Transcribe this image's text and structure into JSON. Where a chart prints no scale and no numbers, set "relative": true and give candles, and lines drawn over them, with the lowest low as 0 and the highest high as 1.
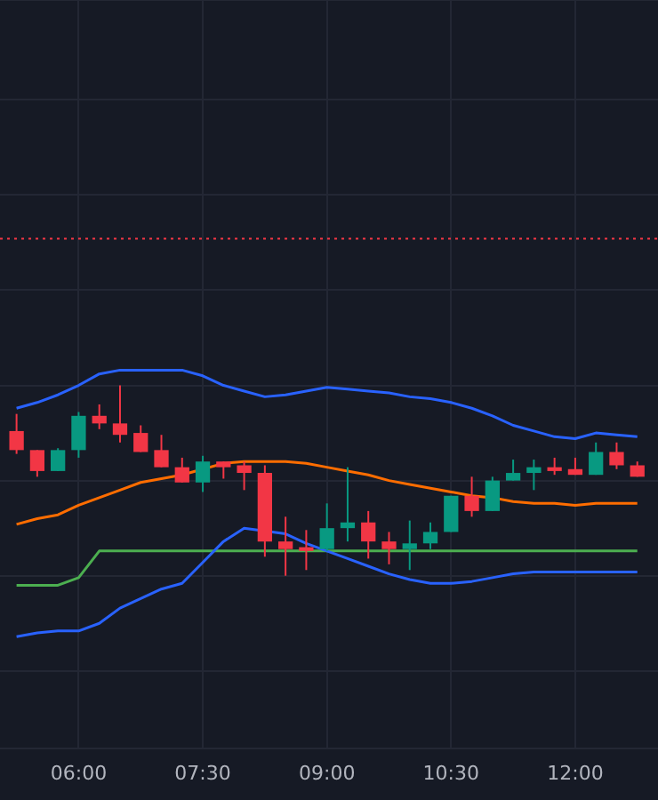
{
  "chart_data": {
    "type": "candlestick",
    "relative": true,
    "x": [
      5.25,
      5.5,
      5.75,
      6,
      6.25,
      6.5,
      6.75,
      7,
      7.25,
      7.5,
      7.75,
      8,
      8.25,
      8.5,
      8.75,
      9,
      9.25,
      9.5,
      9.75,
      10,
      10.25,
      10.5,
      10.75,
      11,
      11.25,
      11.5,
      11.75,
      12,
      12.25,
      12.5,
      12.75
    ],
    "ohlc": [
      [
        0.76,
        0.85,
        0.64,
        0.66
      ],
      [
        0.66,
        0.66,
        0.52,
        0.55
      ],
      [
        0.55,
        0.67,
        0.55,
        0.66
      ],
      [
        0.66,
        0.86,
        0.62,
        0.84
      ],
      [
        0.84,
        0.9,
        0.77,
        0.8
      ],
      [
        0.8,
        1,
        0.7,
        0.74
      ],
      [
        0.75,
        0.79,
        0.65,
        0.65
      ],
      [
        0.66,
        0.74,
        0.57,
        0.57
      ],
      [
        0.57,
        0.62,
        0.49,
        0.49
      ],
      [
        0.49,
        0.63,
        0.44,
        0.6
      ],
      [
        0.6,
        0.6,
        0.51,
        0.57
      ],
      [
        0.58,
        0.6,
        0.45,
        0.54
      ],
      [
        0.54,
        0.58,
        0.1,
        0.18
      ],
      [
        0.18,
        0.31,
        0,
        0.14
      ],
      [
        0.15,
        0.24,
        0.03,
        0.13
      ],
      [
        0.14,
        0.38,
        0.13,
        0.25
      ],
      [
        0.25,
        0.57,
        0.18,
        0.28
      ],
      [
        0.28,
        0.34,
        0.09,
        0.18
      ],
      [
        0.18,
        0.23,
        0.06,
        0.14
      ],
      [
        0.14,
        0.29,
        0.03,
        0.17
      ],
      [
        0.17,
        0.28,
        0.14,
        0.23
      ],
      [
        0.23,
        0.42,
        0.23,
        0.42
      ],
      [
        0.42,
        0.52,
        0.31,
        0.34
      ],
      [
        0.34,
        0.52,
        0.34,
        0.5
      ],
      [
        0.5,
        0.61,
        0.5,
        0.54
      ],
      [
        0.54,
        0.61,
        0.45,
        0.57
      ],
      [
        0.57,
        0.62,
        0.53,
        0.55
      ],
      [
        0.56,
        0.62,
        0.53,
        0.53
      ],
      [
        0.53,
        0.7,
        0.53,
        0.65
      ],
      [
        0.65,
        0.7,
        0.56,
        0.58
      ],
      [
        0.58,
        0.6,
        0.52,
        0.52
      ]
    ],
    "colors": [
      "#f23645",
      "#f23645",
      "#089981",
      "#089981",
      "#f23645",
      "#f23645",
      "#f23645",
      "#f23645",
      "#f23645",
      "#089981",
      "#f23645",
      "#f23645",
      "#f23645",
      "#f23645",
      "#f23645",
      "#089981",
      "#089981",
      "#f23645",
      "#f23645",
      "#089981",
      "#089981",
      "#089981",
      "#f23645",
      "#089981",
      "#089981",
      "#089981",
      "#f23645",
      "#f23645",
      "#089981",
      "#f23645",
      "#f23645"
    ],
    "series": [
      {
        "type": "line",
        "color": "#2962ff",
        "values": [
          0.88,
          0.91,
          0.95,
          1.0,
          1.06,
          1.08,
          1.08,
          1.08,
          1.08,
          1.05,
          1.0,
          0.97,
          0.94,
          0.95,
          0.97,
          0.99,
          0.98,
          0.97,
          0.96,
          0.94,
          0.93,
          0.91,
          0.88,
          0.84,
          0.79,
          0.76,
          0.73,
          0.72,
          0.75,
          0.74,
          0.73
        ]
      },
      {
        "type": "line",
        "color": "#ff6d00",
        "values": [
          0.27,
          0.3,
          0.32,
          0.37,
          0.41,
          0.45,
          0.49,
          0.51,
          0.53,
          0.56,
          0.59,
          0.6,
          0.6,
          0.6,
          0.59,
          0.57,
          0.55,
          0.53,
          0.5,
          0.48,
          0.46,
          0.44,
          0.42,
          0.41,
          0.39,
          0.38,
          0.38,
          0.37,
          0.38,
          0.38,
          0.38
        ]
      },
      {
        "type": "line",
        "color": "#2962ff",
        "values": [
          -0.32,
          -0.3,
          -0.29,
          -0.29,
          -0.25,
          -0.17,
          -0.12,
          -0.07,
          -0.04,
          0.07,
          0.18,
          0.25,
          null,
          0.22,
          0.17,
          0.13,
          0.09,
          0.05,
          0.01,
          -0.02,
          -0.04,
          -0.04,
          -0.03,
          -0.01,
          0.01,
          0.02,
          0.02,
          0.02,
          0.02,
          0.02,
          0.02
        ]
      },
      {
        "type": "line",
        "color": "#4caf50",
        "values": [
          -0.05,
          -0.05,
          -0.05,
          -0.01,
          0.13,
          0.13,
          0.13,
          0.13,
          0.13,
          0.13,
          0.13,
          0.13,
          0.13,
          0.13,
          0.13,
          0.13,
          0.13,
          0.13,
          0.13,
          0.13,
          0.13,
          0.13,
          0.13,
          0.13,
          0.13,
          0.13,
          0.13,
          0.13,
          0.13,
          0.13,
          0.13
        ]
      }
    ],
    "ref_lines": [
      {
        "axis": "y",
        "value": 1.77,
        "color": "#f23645",
        "line_style": "dotted"
      }
    ],
    "xlim": [
      5.05,
      13
    ],
    "xticks": [
      {
        "value": 6,
        "label": "06:00"
      },
      {
        "value": 7.5,
        "label": "07:30"
      },
      {
        "value": 9,
        "label": "09:00"
      },
      {
        "value": 10.5,
        "label": "10:30"
      },
      {
        "value": 12,
        "label": "12:00"
      }
    ],
    "grid": true,
    "legend": false,
    "tick_labels": "x"
  }
}
